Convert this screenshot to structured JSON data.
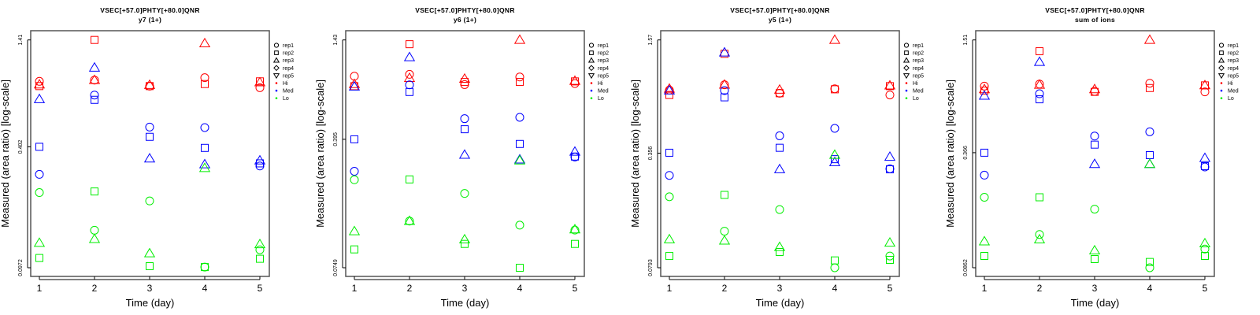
{
  "colors": {
    "Hi": "#ff0000",
    "Med": "#0000ff",
    "Lo": "#00ee00"
  },
  "legend": {
    "reps": [
      {
        "label": "rep1",
        "shape": "circle"
      },
      {
        "label": "rep2",
        "shape": "square"
      },
      {
        "label": "rep3",
        "shape": "triangle-up"
      },
      {
        "label": "rep4",
        "shape": "diamond"
      },
      {
        "label": "rep5",
        "shape": "triangle-down"
      }
    ],
    "groups": [
      "Hi",
      "Med",
      "Lo"
    ]
  },
  "chart_data": [
    {
      "type": "scatter",
      "title": "VSEC[+57.0]PHTY[+80.0]QNR",
      "subtitle": "y7 (1+)",
      "xlabel": "Time (day)",
      "ylabel": "Measured (area ratio) [log-scale]",
      "yscale": "log",
      "yticks": [
        "0.0972",
        "0.402",
        "1.41"
      ],
      "ylim": [
        0.0972,
        1.41
      ],
      "x": [
        1,
        2,
        3,
        4,
        5
      ],
      "series": {
        "Hi": {
          "rep1": [
            0.867,
            0.88,
            0.82,
            0.905,
            0.805
          ],
          "rep2": [
            0.82,
            1.41,
            0.82,
            0.84,
            0.867
          ],
          "rep3": [
            0.835,
            0.88,
            0.83,
            1.354,
            0.856
          ]
        },
        "Med": {
          "rep1": [
            0.291,
            0.738,
            0.507,
            0.504,
            0.321
          ],
          "rep2": [
            0.402,
            0.698,
            0.452,
            0.397,
            0.331
          ],
          "rep3": [
            0.703,
            1.017,
            0.35,
            0.327,
            0.342
          ]
        },
        "Lo": {
          "rep1": [
            0.235,
            0.151,
            0.213,
            0.098,
            0.12
          ],
          "rep2": [
            0.109,
            0.238,
            0.099,
            0.098,
            0.108
          ],
          "rep3": [
            0.13,
            0.136,
            0.115,
            0.313,
            0.128
          ]
        }
      }
    },
    {
      "type": "scatter",
      "title": "VSEC[+57.0]PHTY[+80.0]QNR",
      "subtitle": "y6 (1+)",
      "xlabel": "Time (day)",
      "ylabel": "Measured (area ratio) [log-scale]",
      "yscale": "log",
      "yticks": [
        "0.0749",
        "0.395",
        "1.43"
      ],
      "ylim": [
        0.0749,
        1.43
      ],
      "x": [
        1,
        2,
        3,
        4,
        5
      ],
      "series": {
        "Hi": {
          "rep1": [
            0.894,
            0.916,
            0.802,
            0.885,
            0.813
          ],
          "rep2": [
            0.786,
            1.353,
            0.83,
            0.83,
            0.836
          ],
          "rep3": [
            0.807,
            0.873,
            0.864,
            1.43,
            0.841
          ]
        },
        "Med": {
          "rep1": [
            0.261,
            0.799,
            0.516,
            0.525,
            0.314
          ],
          "rep2": [
            0.395,
            0.729,
            0.45,
            0.372,
            0.316
          ],
          "rep3": [
            0.781,
            1.142,
            0.323,
            0.304,
            0.336
          ]
        },
        "Lo": {
          "rep1": [
            0.234,
            0.137,
            0.196,
            0.13,
            0.122
          ],
          "rep2": [
            0.095,
            0.235,
            0.102,
            0.0749,
            0.102
          ],
          "rep3": [
            0.12,
            0.137,
            0.108,
            0.3,
            0.123
          ]
        }
      }
    },
    {
      "type": "scatter",
      "title": "VSEC[+57.0]PHTY[+80.0]QNR",
      "subtitle": "y5 (1+)",
      "xlabel": "Time (day)",
      "ylabel": "Measured (area ratio) [log-scale]",
      "yscale": "log",
      "yticks": [
        "0.0793",
        "0.356",
        "1.57"
      ],
      "ylim": [
        0.0793,
        1.57
      ],
      "x": [
        1,
        2,
        3,
        4,
        5
      ],
      "series": {
        "Hi": {
          "rep1": [
            0.814,
            0.872,
            0.781,
            0.828,
            0.763
          ],
          "rep2": [
            0.763,
            1.309,
            0.781,
            0.822,
            0.857
          ],
          "rep3": [
            0.828,
            0.872,
            0.817,
            1.57,
            0.863
          ]
        },
        "Med": {
          "rep1": [
            0.266,
            0.809,
            0.447,
            0.493,
            0.29
          ],
          "rep2": [
            0.358,
            0.74,
            0.382,
            0.329,
            0.288
          ],
          "rep3": [
            0.809,
            1.331,
            0.288,
            0.316,
            0.339
          ]
        },
        "Lo": {
          "rep1": [
            0.201,
            0.128,
            0.17,
            0.0793,
            0.0925
          ],
          "rep2": [
            0.0925,
            0.206,
            0.0975,
            0.0873,
            0.0879
          ],
          "rep3": [
            0.115,
            0.113,
            0.104,
            0.348,
            0.11
          ]
        }
      }
    },
    {
      "type": "scatter",
      "title": "VSEC[+57.0]PHTY[+80.0]QNR",
      "subtitle": "sum of ions",
      "xlabel": "Time (day)",
      "ylabel": "Measured (area ratio) [log-scale]",
      "yscale": "log",
      "yticks": [
        "0.0862",
        "0.366",
        "1.51"
      ],
      "ylim": [
        0.0862,
        1.51
      ],
      "x": [
        1,
        2,
        3,
        4,
        5
      ],
      "series": {
        "Hi": {
          "rep1": [
            0.845,
            0.867,
            0.791,
            0.876,
            0.786
          ],
          "rep2": [
            0.798,
            1.31,
            0.786,
            0.825,
            0.853
          ],
          "rep3": [
            0.812,
            0.859,
            0.812,
            1.51,
            0.853
          ]
        },
        "Med": {
          "rep1": [
            0.276,
            0.768,
            0.451,
            0.476,
            0.306
          ],
          "rep2": [
            0.366,
            0.716,
            0.405,
            0.355,
            0.309
          ],
          "rep3": [
            0.748,
            1.144,
            0.317,
            0.317,
            0.342
          ]
        },
        "Lo": {
          "rep1": [
            0.209,
            0.131,
            0.18,
            0.0862,
            0.109
          ],
          "rep2": [
            0.1,
            0.209,
            0.0961,
            0.0927,
            0.1
          ],
          "rep3": [
            0.12,
            0.123,
            0.107,
            0.317,
            0.117
          ]
        }
      }
    }
  ]
}
